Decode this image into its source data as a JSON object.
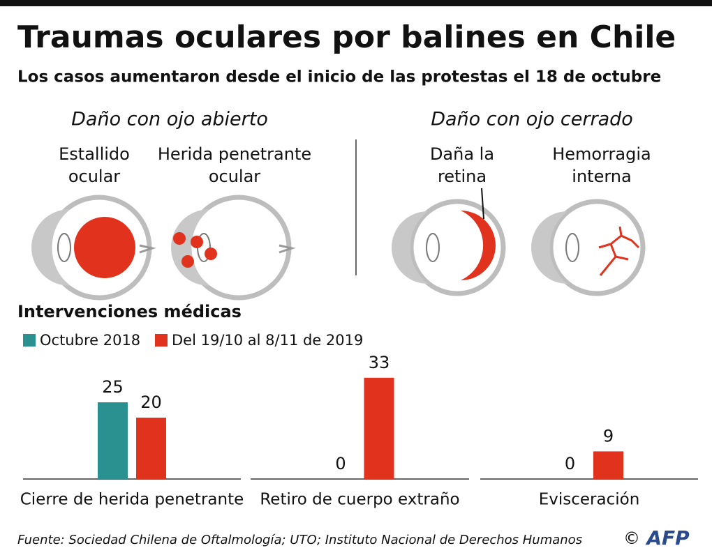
{
  "header": {
    "title": "Traumas oculares por balines en Chile",
    "subtitle": "Los casos aumentaron desde el inicio de las protestas el 18 de octubre"
  },
  "diagram": {
    "sections": [
      {
        "title": "Daño con ojo abierto",
        "items": [
          {
            "lines": [
              "Estallido",
              "ocular"
            ]
          },
          {
            "lines": [
              "Herida penetrante",
              "ocular"
            ]
          }
        ]
      },
      {
        "title": "Daño con ojo cerrado",
        "items": [
          {
            "lines": [
              "Daña la",
              "retina"
            ]
          },
          {
            "lines": [
              "Hemorragia",
              "interna"
            ]
          }
        ]
      }
    ]
  },
  "chart_data": {
    "type": "bar",
    "title": "Intervenciones médicas",
    "categories": [
      "Cierre de herida penetrante",
      "Retiro de cuerpo extraño",
      "Evisceración"
    ],
    "series": [
      {
        "name": "Octubre 2018",
        "color": "#2a9090",
        "values": [
          25,
          0,
          0
        ]
      },
      {
        "name": "Del 19/10 al 8/11 de 2019",
        "color": "#e0321c",
        "values": [
          20,
          33,
          9
        ]
      }
    ]
  },
  "footer": {
    "source": "Fuente: Sociedad Chilena de Oftalmología; UTO; Instituto Nacional de Derechos Humanos",
    "copyright": "©",
    "logo": "AFP"
  }
}
